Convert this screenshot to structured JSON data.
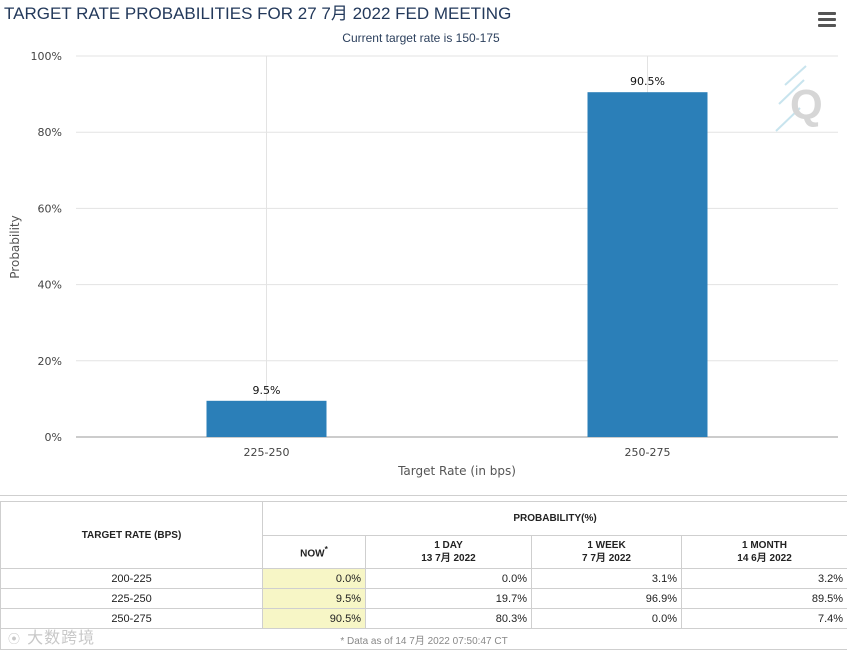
{
  "chart_data": {
    "type": "bar",
    "title": "TARGET RATE PROBABILITIES FOR 27 7月 2022 FED MEETING",
    "subtitle": "Current target rate is 150-175",
    "categories": [
      "225-250",
      "250-275"
    ],
    "values": [
      9.5,
      90.5
    ],
    "data_labels": [
      "9.5%",
      "90.5%"
    ],
    "xlabel": "Target Rate (in bps)",
    "ylabel": "Probability",
    "ylim": [
      0,
      100
    ],
    "yticks": [
      0,
      20,
      40,
      60,
      80,
      100
    ],
    "ytick_labels": [
      "0%",
      "20%",
      "40%",
      "60%",
      "80%",
      "100%"
    ],
    "bar_color": "#2b7fb8",
    "grid": true
  },
  "table": {
    "rate_header": "TARGET RATE (BPS)",
    "prob_header": "PROBABILITY(%)",
    "columns": [
      {
        "line1": "NOW",
        "line2": "*"
      },
      {
        "line1": "1 DAY",
        "line2": "13 7月 2022"
      },
      {
        "line1": "1 WEEK",
        "line2": "7 7月 2022"
      },
      {
        "line1": "1 MONTH",
        "line2": "14 6月 2022"
      }
    ],
    "rows": [
      {
        "rate": "200-225",
        "now": "0.0%",
        "day": "0.0%",
        "week": "3.1%",
        "month": "3.2%"
      },
      {
        "rate": "225-250",
        "now": "9.5%",
        "day": "19.7%",
        "week": "96.9%",
        "month": "89.5%"
      },
      {
        "rate": "250-275",
        "now": "90.5%",
        "day": "80.3%",
        "week": "0.0%",
        "month": "7.4%"
      }
    ],
    "footnote": "* Data as of 14 7月 2022 07:50:47 CT"
  },
  "watermark": "大数跨境",
  "logo_letter": "Q",
  "colors": {
    "now_highlight": "#f7f6c6",
    "title": "#23395b"
  }
}
